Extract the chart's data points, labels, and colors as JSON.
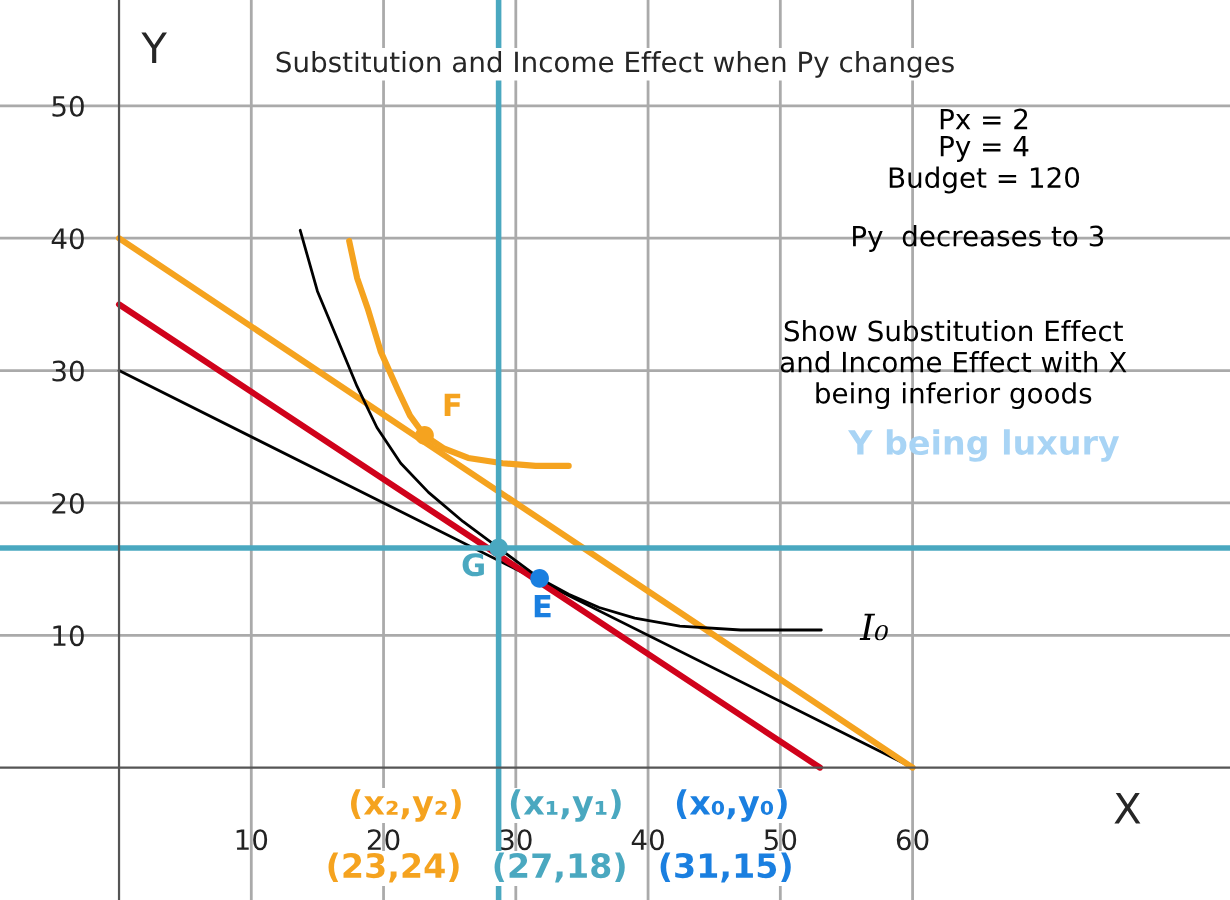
{
  "chart_data": {
    "type": "line",
    "title": "Substitution and Income Effect when Py changes",
    "xlabel": "X",
    "ylabel": "Y",
    "xlim": [
      -9,
      84
    ],
    "ylim": [
      -10,
      58
    ],
    "xticks": [
      10,
      20,
      30,
      40,
      50,
      60
    ],
    "yticks": [
      10,
      20,
      30,
      40,
      50
    ],
    "grid": true,
    "series": [
      {
        "color": "#000000",
        "x": [
          0,
          60
        ],
        "values": [
          30,
          0
        ]
      },
      {
        "color": "#f5a31f",
        "x": [
          0,
          60
        ],
        "values": [
          40,
          0
        ]
      },
      {
        "color": "#d0021b",
        "x": [
          0,
          53
        ],
        "values": [
          35,
          0
        ]
      },
      {
        "color": "#000000",
        "x": [
          13.7,
          15,
          16.5,
          18,
          19.5,
          21.3,
          23.4,
          26,
          28.7,
          31.8,
          34,
          36.3,
          39,
          42.4,
          47,
          53.1
        ],
        "values": [
          40.6,
          36,
          32.4,
          28.8,
          25.7,
          23,
          20.8,
          18.6,
          16.6,
          14.3,
          13.1,
          12.1,
          11.3,
          10.7,
          10.4,
          10.4
        ]
      },
      {
        "color": "#f5a31f",
        "x": [
          17.4,
          18,
          18.8,
          19.8,
          21.1,
          22,
          23.1,
          24.6,
          26.4,
          29,
          31.5,
          34
        ],
        "values": [
          39.8,
          37,
          34.7,
          31.4,
          28.5,
          26.6,
          25.1,
          24.1,
          23.4,
          23,
          22.8,
          22.8
        ]
      },
      {
        "type": "scatter",
        "color": "#f5a31f",
        "x": [
          23.1
        ],
        "values": [
          25.1
        ]
      },
      {
        "type": "scatter",
        "color": "#4aa8c0",
        "x": [
          28.7
        ],
        "values": [
          16.6
        ]
      },
      {
        "type": "scatter",
        "color": "#1a7fe0",
        "x": [
          31.8
        ],
        "values": [
          14.3
        ]
      }
    ],
    "ref_lines": [
      {
        "axis": "x",
        "value": 28.7,
        "color": "#4aa8c0"
      },
      {
        "axis": "y",
        "value": 16.6,
        "color": "#4aa8c0"
      }
    ],
    "annotations": [
      {
        "text": "F",
        "x": 23.1,
        "y": 25.1
      },
      {
        "text": "G",
        "x": 28.7,
        "y": 16.6
      },
      {
        "text": "E",
        "x": 31.8,
        "y": 14.3
      },
      {
        "text": "I₀",
        "x": 53.1,
        "y": 10.4
      },
      "Px = 2",
      "Py = 4",
      "Budget = 120",
      "Py  decreases to 3",
      "Show Substitution Effect\nand Income Effect with X\nbeing inferior goods",
      "Y being luxury",
      "(x₂,y₂)",
      "(x₁,y₁)",
      "(x₀,y₀)",
      "(23,24)",
      "(27,18)",
      "(31,15)"
    ]
  }
}
